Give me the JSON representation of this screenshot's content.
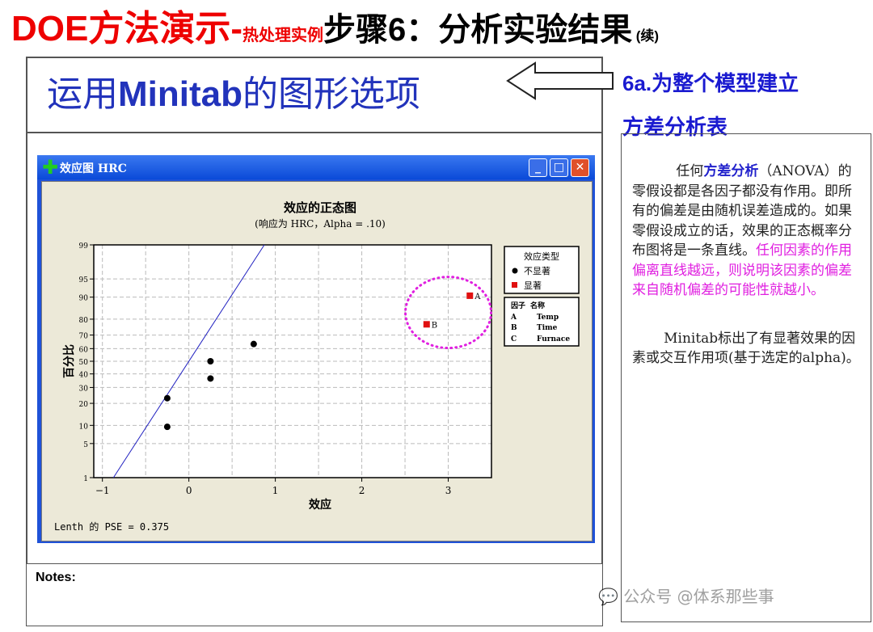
{
  "title": {
    "main_red": "DOE方法演示-",
    "sub_red": "热处理实例",
    "main_black": "步骤6：分析实验结果",
    "cont": "(续)"
  },
  "subtitle": {
    "pre": "运用",
    "bold": "Minitab",
    "post": "的图形选项"
  },
  "side_label": {
    "line1": "6a.为整个模型建立",
    "line2": "方差分析表"
  },
  "notes_label": "Notes:",
  "right_text": {
    "p1_a": "任何",
    "p1_blue": "方差分析",
    "p1_b": "（ANOVA）的零假设都是各因子都没有作用。即所有的偏差是由随机误差造成的。如果零假设成立的话，效果的正态概率分布图将是一条直线。",
    "p1_mag": "任何因素的作用偏离直线越远，则说明该因素的偏差来自随机偏差的可能性就越小。",
    "p2": "Minitab标出了有显著效果的因素或交互作用项(基于选定的alpha)。"
  },
  "window": {
    "title": "效应图  HRC",
    "icon": "plus-icon",
    "buttons": [
      "minimize",
      "maximize",
      "close"
    ]
  },
  "watermark": "公众号 @体系那些事",
  "chart_data": {
    "type": "scatter",
    "title": "效应的正态图",
    "subtitle": "(响应为 HRC，Alpha =   .10)",
    "xlabel": "效应",
    "ylabel": "百分比",
    "xlim": [
      -1.1,
      3.5
    ],
    "x_ticks": [
      -1,
      0,
      1,
      2,
      3
    ],
    "y_scale": "normal-probability",
    "y_ticks": [
      1,
      5,
      10,
      20,
      30,
      40,
      50,
      60,
      70,
      80,
      90,
      95,
      99
    ],
    "grid": true,
    "points": [
      {
        "x": -0.25,
        "y": 9.5,
        "type": "不显著"
      },
      {
        "x": -0.25,
        "y": 23,
        "type": "不显著"
      },
      {
        "x": 0.25,
        "y": 36.5,
        "type": "不显著"
      },
      {
        "x": 0.25,
        "y": 50,
        "type": "不显著"
      },
      {
        "x": 0.75,
        "y": 63.5,
        "type": "不显著"
      },
      {
        "x": 2.75,
        "y": 77,
        "type": "显著",
        "label": "B"
      },
      {
        "x": 3.25,
        "y": 90.5,
        "type": "显著",
        "label": "A"
      }
    ],
    "reference_line": {
      "mean": 0,
      "sd": 0.375
    },
    "legend": {
      "title": "效应类型",
      "entries": [
        {
          "label": "不显著",
          "marker": "circle",
          "color": "#000000"
        },
        {
          "label": "显著",
          "marker": "square",
          "color": "#e01010"
        }
      ],
      "placement": "right"
    },
    "factor_table": {
      "headers": [
        "因子",
        "名称"
      ],
      "rows": [
        [
          "A",
          "Temp"
        ],
        [
          "B",
          "Time"
        ],
        [
          "C",
          "Furnace"
        ]
      ]
    },
    "footer": "Lenth 的 PSE = 0.375",
    "highlight_color": "#e020e0",
    "line_color": "#2020c0"
  }
}
